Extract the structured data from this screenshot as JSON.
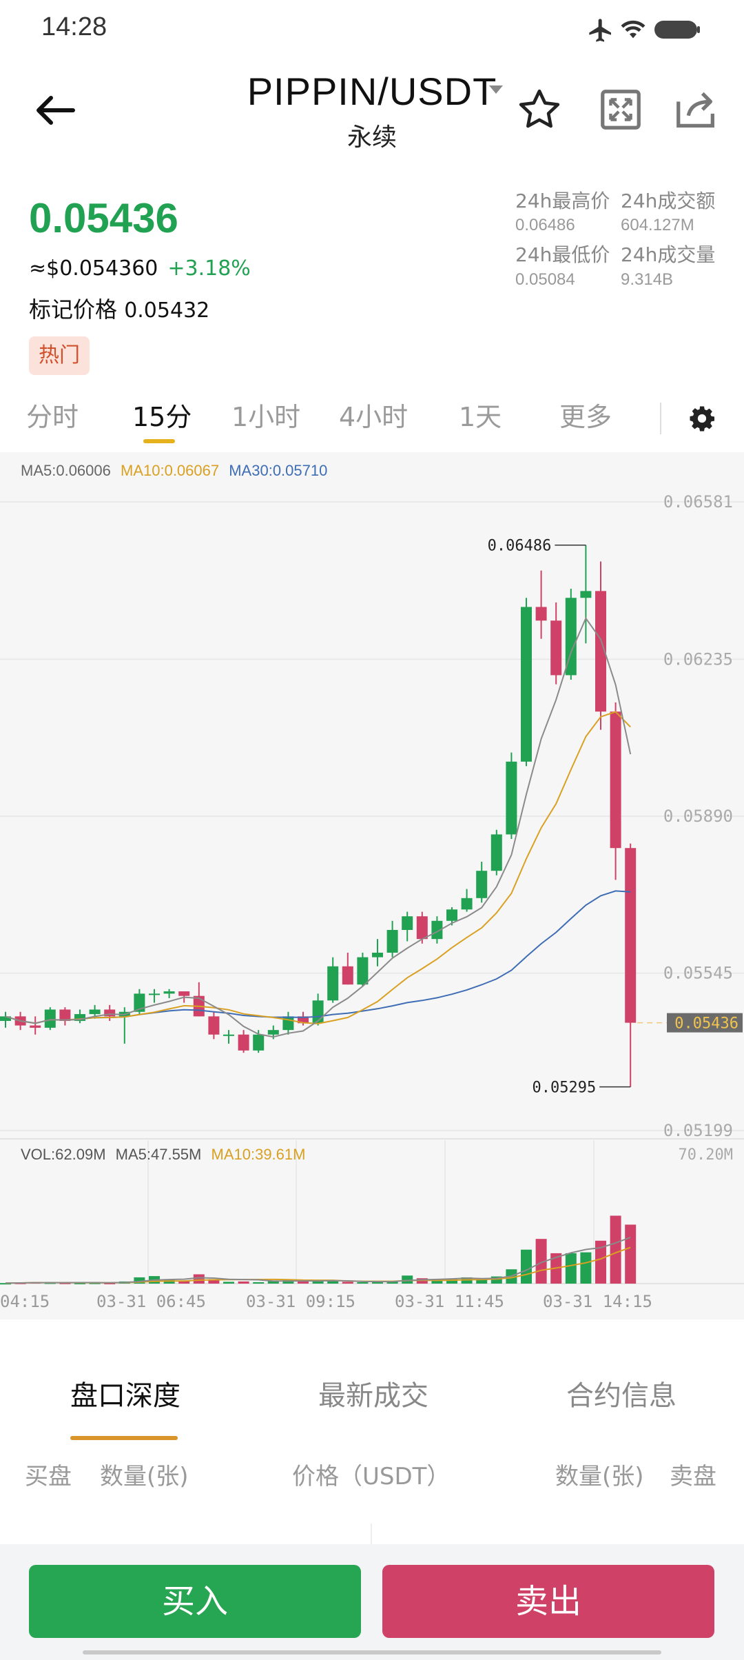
{
  "status_bar": {
    "time": "14:28"
  },
  "header": {
    "pair": "PIPPIN/USDT",
    "contract_type": "永续"
  },
  "price": {
    "last": "0.05436",
    "usd": "≈$0.054360",
    "change": "+3.18%",
    "mark_label": "标记价格",
    "mark_value": "0.05432",
    "tag": "热门"
  },
  "stats": {
    "high_label": "24h最高价",
    "high_value": "0.06486",
    "turnover_label": "24h成交额",
    "turnover_value": "604.127M",
    "low_label": "24h最低价",
    "low_value": "0.05084",
    "volume_label": "24h成交量",
    "volume_value": "9.314B"
  },
  "timeframes": {
    "t0": "分时",
    "t1": "15分",
    "t2": "1小时",
    "t3": "4小时",
    "t4": "1天",
    "t5": "更多",
    "active": "15分"
  },
  "indicators": {
    "ma5": "MA5:0.06006",
    "ma10": "MA10:0.06067",
    "ma30": "MA30:0.05710"
  },
  "volume_indicators": {
    "vol": "VOL:62.09M",
    "ma5": "MA5:47.55M",
    "ma10": "MA10:39.61M",
    "max": "70.20M"
  },
  "chart_data": {
    "type": "candlestick",
    "price_axis": [
      "0.06581",
      "0.06235",
      "0.05890",
      "0.05545",
      "0.05199"
    ],
    "current_price_label": "0.05436",
    "high_marker": "0.06486",
    "low_marker": "0.05295",
    "time_axis": [
      "04:15",
      "03-31 06:45",
      "03-31 09:15",
      "03-31 11:45",
      "03-31 14:15"
    ],
    "ylim": [
      0.05199,
      0.06581
    ],
    "candles": [
      [
        0.0544,
        0.0546,
        0.05425,
        0.0545
      ],
      [
        0.0545,
        0.0546,
        0.0542,
        0.0543
      ],
      [
        0.0543,
        0.0545,
        0.0541,
        0.05425
      ],
      [
        0.05425,
        0.0547,
        0.0542,
        0.05465
      ],
      [
        0.05465,
        0.0547,
        0.0543,
        0.0544
      ],
      [
        0.0544,
        0.05465,
        0.05435,
        0.05455
      ],
      [
        0.05455,
        0.05475,
        0.05445,
        0.05465
      ],
      [
        0.05465,
        0.05475,
        0.0544,
        0.0545
      ],
      [
        0.0545,
        0.0547,
        0.0539,
        0.0546
      ],
      [
        0.0546,
        0.0551,
        0.05455,
        0.055
      ],
      [
        0.055,
        0.0551,
        0.0548,
        0.055
      ],
      [
        0.055,
        0.0551,
        0.0549,
        0.05505
      ],
      [
        0.05505,
        0.05505,
        0.0548,
        0.05495
      ],
      [
        0.05495,
        0.05525,
        0.0545,
        0.0545
      ],
      [
        0.0545,
        0.0546,
        0.054,
        0.0541
      ],
      [
        0.0541,
        0.0542,
        0.0539,
        0.0541
      ],
      [
        0.0541,
        0.0542,
        0.0537,
        0.05375
      ],
      [
        0.05375,
        0.0542,
        0.0537,
        0.0541
      ],
      [
        0.0541,
        0.0543,
        0.054,
        0.0542
      ],
      [
        0.0542,
        0.0546,
        0.0541,
        0.0545
      ],
      [
        0.0545,
        0.0546,
        0.0543,
        0.05435
      ],
      [
        0.05435,
        0.055,
        0.0543,
        0.05485
      ],
      [
        0.05485,
        0.0558,
        0.0548,
        0.0556
      ],
      [
        0.0556,
        0.0559,
        0.0552,
        0.0552
      ],
      [
        0.0552,
        0.0559,
        0.05515,
        0.0558
      ],
      [
        0.0558,
        0.0562,
        0.0556,
        0.0559
      ],
      [
        0.0559,
        0.0566,
        0.0558,
        0.0564
      ],
      [
        0.0564,
        0.0568,
        0.05615,
        0.0567
      ],
      [
        0.0567,
        0.0568,
        0.0561,
        0.0562
      ],
      [
        0.0562,
        0.0567,
        0.0561,
        0.0566
      ],
      [
        0.0566,
        0.0569,
        0.0565,
        0.05685
      ],
      [
        0.05685,
        0.0573,
        0.0568,
        0.0571
      ],
      [
        0.0571,
        0.0579,
        0.057,
        0.0577
      ],
      [
        0.0577,
        0.0586,
        0.0576,
        0.0585
      ],
      [
        0.0585,
        0.0603,
        0.0584,
        0.0601
      ],
      [
        0.0601,
        0.0637,
        0.06,
        0.0635
      ],
      [
        0.0635,
        0.0643,
        0.0628,
        0.0632
      ],
      [
        0.0632,
        0.0636,
        0.0618,
        0.062
      ],
      [
        0.062,
        0.0639,
        0.0619,
        0.0637
      ],
      [
        0.0637,
        0.06486,
        0.0627,
        0.06385
      ],
      [
        0.06385,
        0.0645,
        0.0608,
        0.0612
      ],
      [
        0.0612,
        0.0614,
        0.0575,
        0.0582
      ],
      [
        0.0582,
        0.0583,
        0.05295,
        0.05436
      ]
    ],
    "ma_lines": {
      "ma5_color": "#8a8a8a",
      "ma10_color": "#d9a021",
      "ma30_color": "#3e6db5"
    },
    "volumes": [
      0.3,
      0.5,
      0.8,
      0.6,
      0.5,
      0.4,
      0.5,
      0.4,
      1.2,
      3.5,
      4.2,
      2.0,
      1.5,
      5.2,
      2.5,
      1.0,
      1.2,
      0.8,
      1.6,
      2.5,
      1.5,
      1.2,
      1.5,
      1.0,
      0.8,
      1.0,
      1.3,
      4.5,
      3.0,
      2.0,
      2.5,
      3.5,
      3.0,
      4.0,
      8.0,
      19.0,
      25.0,
      17.0,
      17.0,
      17.5,
      24.0,
      38.0,
      33.0
    ],
    "volume_max": 70.2
  },
  "bottom_tabs": {
    "depth": "盘口深度",
    "trades": "最新成交",
    "info": "合约信息"
  },
  "order_book_headers": {
    "bid": "买盘",
    "qty_left": "数量(张)",
    "price": "价格（USDT）",
    "qty_right": "数量(张)",
    "ask": "卖盘"
  },
  "actions": {
    "buy": "买入",
    "sell": "卖出"
  },
  "colors": {
    "up": "#21a152",
    "down": "#cf4167",
    "accent": "#e5b21d"
  }
}
